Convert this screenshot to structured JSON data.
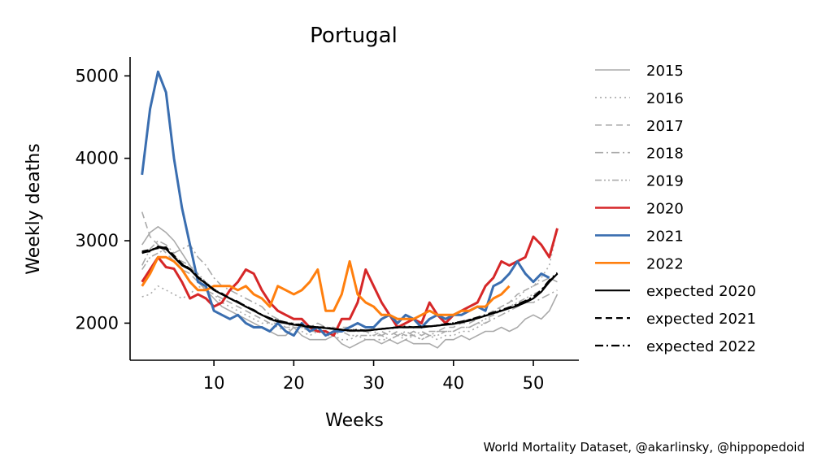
{
  "chart_data": {
    "type": "line",
    "title": "Portugal",
    "xlabel": "Weeks",
    "ylabel": "Weekly deaths",
    "xlim": [
      -0.5,
      55.7
    ],
    "ylim": [
      1550,
      5230
    ],
    "xticks": [
      10,
      20,
      30,
      40,
      50
    ],
    "yticks": [
      2000,
      3000,
      4000,
      5000
    ],
    "grid": false,
    "legend_position": "right-outside",
    "credit": "World Mortality Dataset, @akarlinsky, @hippopedoid",
    "series": [
      {
        "name": "2015",
        "color": "#aaaaaa",
        "dash": "solid",
        "width": 1.6,
        "values": [
          2950,
          3100,
          3170,
          3100,
          3000,
          2850,
          2700,
          2550,
          2400,
          2300,
          2200,
          2150,
          2100,
          2050,
          2000,
          1950,
          1900,
          1850,
          1850,
          1950,
          1850,
          1800,
          1800,
          1800,
          1850,
          1750,
          1700,
          1750,
          1800,
          1800,
          1750,
          1800,
          1750,
          1800,
          1750,
          1750,
          1750,
          1700,
          1800,
          1800,
          1850,
          1800,
          1850,
          1900,
          1900,
          1950,
          1900,
          1950,
          2050,
          2100,
          2050,
          2150,
          2350
        ]
      },
      {
        "name": "2016",
        "color": "#aaaaaa",
        "dash": "dotted",
        "width": 1.6,
        "values": [
          2320,
          2350,
          2450,
          2400,
          2350,
          2300,
          2350,
          2450,
          2400,
          2350,
          2250,
          2200,
          2150,
          2100,
          2050,
          2000,
          2000,
          1950,
          1900,
          1950,
          1900,
          1850,
          1900,
          1850,
          1850,
          1800,
          1800,
          1850,
          1800,
          1800,
          1800,
          1800,
          1850,
          1800,
          1850,
          1800,
          1850,
          1800,
          1850,
          1850,
          1900,
          1900,
          1950,
          2000,
          2100,
          2200,
          2250,
          2300,
          2400,
          2450,
          2550,
          2700,
          3150
        ]
      },
      {
        "name": "2017",
        "color": "#aaaaaa",
        "dash": "dashed",
        "width": 1.6,
        "values": [
          3350,
          3050,
          2950,
          2850,
          2750,
          2650,
          2600,
          2500,
          2400,
          2350,
          2300,
          2250,
          2200,
          2150,
          2100,
          2050,
          2000,
          2000,
          1950,
          1950,
          1950,
          1900,
          1900,
          1850,
          1900,
          1950,
          1950,
          1900,
          1900,
          1850,
          1900,
          1850,
          1900,
          1850,
          1900,
          1850,
          1900,
          1900,
          1950,
          1950,
          2000,
          2000,
          2050,
          2100,
          2150,
          2200,
          2250,
          2350,
          2400,
          2450,
          2500,
          2550,
          2500
        ]
      },
      {
        "name": "2018",
        "color": "#aaaaaa",
        "dash": "dashdot",
        "width": 1.6,
        "values": [
          2700,
          2900,
          3000,
          2950,
          2850,
          2900,
          2950,
          2800,
          2700,
          2550,
          2450,
          2400,
          2350,
          2300,
          2250,
          2200,
          2100,
          2050,
          2000,
          2000,
          1950,
          1950,
          2000,
          1950,
          1950,
          1900,
          1900,
          1900,
          1900,
          1900,
          1850,
          1900,
          1850,
          1900,
          1850,
          1900,
          1850,
          1900,
          1900,
          1900,
          1950,
          1950,
          2000,
          2000,
          2050,
          2100,
          2150,
          2200,
          2250,
          2250,
          2300,
          2350,
          2400
        ]
      },
      {
        "name": "2019",
        "color": "#aaaaaa",
        "dash": "dashdotdot",
        "width": 1.6,
        "values": [
          2650,
          2800,
          2850,
          2900,
          2800,
          2750,
          2700,
          2600,
          2500,
          2400,
          2350,
          2300,
          2250,
          2200,
          2150,
          2100,
          2050,
          2000,
          2000,
          1950,
          1950,
          1900,
          1900,
          1900,
          1850,
          1900,
          1850,
          1850,
          1850,
          1850,
          1850,
          1800,
          1850,
          1850,
          1850,
          1800,
          1850,
          1850,
          1900,
          1900,
          1950,
          1950,
          2000,
          2050,
          2100,
          2150,
          2200,
          2250,
          2300,
          2350,
          2400,
          2500,
          2600
        ]
      },
      {
        "name": "2020",
        "color": "#d62728",
        "dash": "solid",
        "width": 3,
        "values": [
          2500,
          2650,
          2800,
          2680,
          2660,
          2500,
          2300,
          2350,
          2300,
          2200,
          2250,
          2400,
          2500,
          2650,
          2600,
          2400,
          2250,
          2150,
          2100,
          2050,
          2050,
          1950,
          1900,
          1900,
          1850,
          2050,
          2050,
          2250,
          2650,
          2450,
          2250,
          2100,
          1950,
          2000,
          2050,
          2000,
          2250,
          2100,
          2000,
          2100,
          2150,
          2200,
          2250,
          2450,
          2550,
          2750,
          2700,
          2750,
          2800,
          3050,
          2950,
          2800,
          3150
        ]
      },
      {
        "name": "2021",
        "color": "#3a6eb0",
        "dash": "solid",
        "width": 3,
        "values": [
          3800,
          4600,
          5050,
          4800,
          4000,
          3400,
          2950,
          2500,
          2450,
          2150,
          2100,
          2050,
          2100,
          2000,
          1950,
          1950,
          1900,
          2000,
          1900,
          1850,
          2000,
          1900,
          1950,
          1850,
          1900,
          1900,
          1950,
          2000,
          1950,
          1950,
          2050,
          2100,
          2000,
          2100,
          2050,
          1950,
          2050,
          2100,
          2050,
          2100,
          2100,
          2150,
          2200,
          2150,
          2450,
          2500,
          2600,
          2750,
          2600,
          2500,
          2600,
          2550
        ]
      },
      {
        "name": "2022",
        "color": "#ff7f0e",
        "dash": "solid",
        "width": 3,
        "values": [
          2450,
          2600,
          2800,
          2800,
          2750,
          2650,
          2500,
          2400,
          2400,
          2450,
          2450,
          2450,
          2400,
          2450,
          2350,
          2300,
          2200,
          2450,
          2400,
          2350,
          2400,
          2500,
          2650,
          2150,
          2150,
          2350,
          2750,
          2350,
          2250,
          2200,
          2100,
          2100,
          2050,
          2050,
          2050,
          2100,
          2150,
          2100,
          2100,
          2100,
          2150,
          2150,
          2200,
          2200,
          2300,
          2350,
          2450
        ]
      },
      {
        "name": "expected 2020",
        "color": "#000000",
        "dash": "solid",
        "width": 2.2,
        "values": [
          2850,
          2880,
          2920,
          2900,
          2800,
          2700,
          2650,
          2550,
          2480,
          2400,
          2350,
          2300,
          2250,
          2200,
          2150,
          2100,
          2050,
          2020,
          2000,
          1980,
          1970,
          1950,
          1950,
          1940,
          1930,
          1920,
          1910,
          1910,
          1910,
          1920,
          1930,
          1940,
          1950,
          1950,
          1950,
          1950,
          1960,
          1970,
          1980,
          1990,
          2010,
          2030,
          2060,
          2090,
          2120,
          2150,
          2180,
          2210,
          2250,
          2300,
          2380,
          2500,
          2600
        ]
      },
      {
        "name": "expected 2021",
        "color": "#000000",
        "dash": "dashed",
        "width": 2.2,
        "values": [
          2870,
          2890,
          2910,
          2920,
          2820,
          2720,
          2660,
          2560,
          2480,
          2410,
          2350,
          2300,
          2250,
          2210,
          2150,
          2100,
          2060,
          2030,
          2000,
          1990,
          1980,
          1960,
          1950,
          1950,
          1930,
          1920,
          1910,
          1910,
          1910,
          1920,
          1930,
          1940,
          1950,
          1950,
          1950,
          1960,
          1960,
          1970,
          1980,
          2000,
          2010,
          2040,
          2060,
          2090,
          2120,
          2150,
          2190,
          2220,
          2260,
          2310,
          2390,
          2510,
          2600
        ]
      },
      {
        "name": "expected 2022",
        "color": "#000000",
        "dash": "dashdot",
        "width": 2.2,
        "values": [
          2860,
          2870,
          2930,
          2910,
          2810,
          2710,
          2660,
          2560,
          2490,
          2400,
          2360,
          2300,
          2260,
          2200,
          2160,
          2100,
          2060,
          2030,
          2010,
          1990,
          1970,
          1960,
          1950,
          1940,
          1930,
          1920,
          1910,
          1920,
          1910,
          1920,
          1930,
          1940,
          1950,
          1960,
          1950,
          1960,
          1960,
          1970,
          1990,
          2000,
          2020,
          2040,
          2070,
          2100,
          2130,
          2160,
          2190,
          2230,
          2270,
          2320,
          2400,
          2520,
          2610
        ]
      }
    ]
  }
}
